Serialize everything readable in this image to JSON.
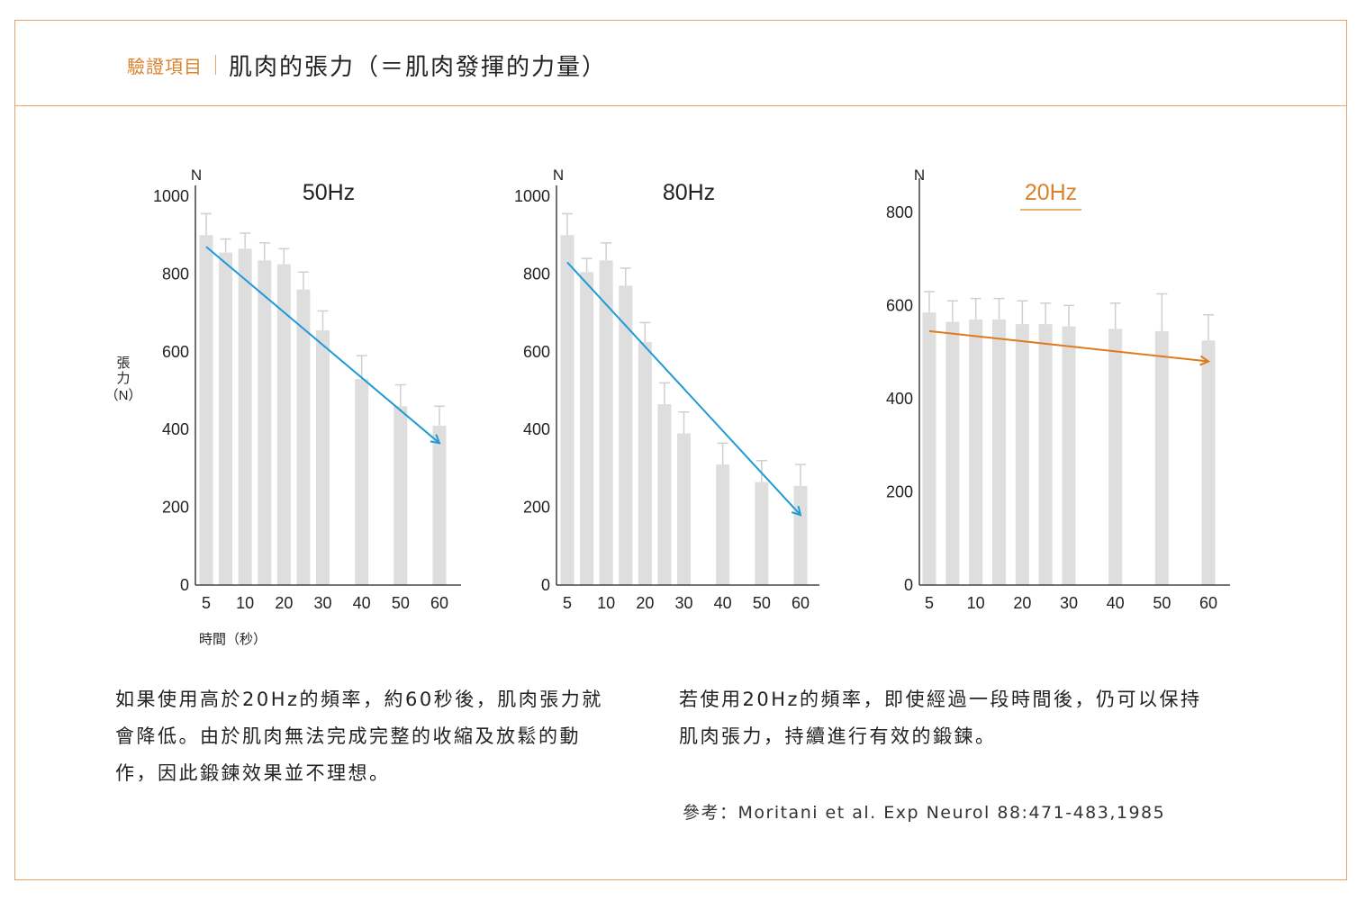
{
  "header": {
    "label": "驗證項目",
    "title": "肌肉的張力（＝肌肉發揮的力量）"
  },
  "colors": {
    "frame": "#e8a46a",
    "accent": "#d9822b",
    "bar": "#dedede",
    "trend_blue": "#1e9bd7",
    "trend_orange": "#e07a1f"
  },
  "axes": {
    "unit": "N",
    "ylabel_chars": [
      "張",
      "力",
      "（N）"
    ],
    "xlabel": "時間（秒）"
  },
  "chart_data": [
    {
      "type": "bar",
      "title": "50Hz",
      "highlight": false,
      "ylim": [
        0,
        1000
      ],
      "yticks": [
        0,
        200,
        400,
        600,
        800,
        1000
      ],
      "x": [
        5,
        7.5,
        10,
        15,
        20,
        25,
        30,
        40,
        50,
        60
      ],
      "xticks": [
        5,
        10,
        20,
        30,
        40,
        50,
        60
      ],
      "values": [
        900,
        855,
        865,
        835,
        825,
        760,
        655,
        530,
        460,
        410
      ],
      "errors": [
        55,
        35,
        40,
        45,
        40,
        45,
        50,
        60,
        55,
        50
      ],
      "trend": {
        "from": [
          5,
          870
        ],
        "to": [
          60,
          365
        ],
        "color": "blue"
      }
    },
    {
      "type": "bar",
      "title": "80Hz",
      "highlight": false,
      "ylim": [
        0,
        1000
      ],
      "yticks": [
        0,
        200,
        400,
        600,
        800,
        1000
      ],
      "x": [
        5,
        7.5,
        10,
        15,
        20,
        25,
        30,
        40,
        50,
        60
      ],
      "xticks": [
        5,
        10,
        20,
        30,
        40,
        50,
        60
      ],
      "values": [
        900,
        805,
        835,
        770,
        625,
        465,
        390,
        310,
        265,
        255
      ],
      "errors": [
        55,
        35,
        45,
        45,
        50,
        55,
        55,
        55,
        55,
        55
      ],
      "trend": {
        "from": [
          5,
          830
        ],
        "to": [
          60,
          180
        ],
        "color": "blue"
      }
    },
    {
      "type": "bar",
      "title": "20Hz",
      "highlight": true,
      "ylim": [
        0,
        850
      ],
      "yticks": [
        0,
        200,
        400,
        600,
        800
      ],
      "x": [
        5,
        7.5,
        10,
        15,
        20,
        25,
        30,
        40,
        50,
        60
      ],
      "xticks": [
        5,
        10,
        20,
        30,
        40,
        50,
        60
      ],
      "values": [
        585,
        565,
        570,
        570,
        560,
        560,
        555,
        550,
        545,
        525
      ],
      "errors": [
        45,
        45,
        45,
        45,
        50,
        45,
        45,
        55,
        80,
        55
      ],
      "trend": {
        "from": [
          5,
          545
        ],
        "to": [
          60,
          480
        ],
        "color": "orange"
      }
    }
  ],
  "descriptions": {
    "left": [
      "如果使用高於20Hz的頻率，約60秒後，肌肉張力就",
      "會降低。由於肌肉無法完成完整的收縮及放鬆的動",
      "作，因此鍛鍊效果並不理想。"
    ],
    "right": [
      "若使用20Hz的頻率，即使經過一段時間後，仍可以保持",
      "肌肉張力，持續進行有效的鍛鍊。"
    ],
    "reference": "參考：Moritani et al. Exp Neurol 88:471-483,1985"
  }
}
